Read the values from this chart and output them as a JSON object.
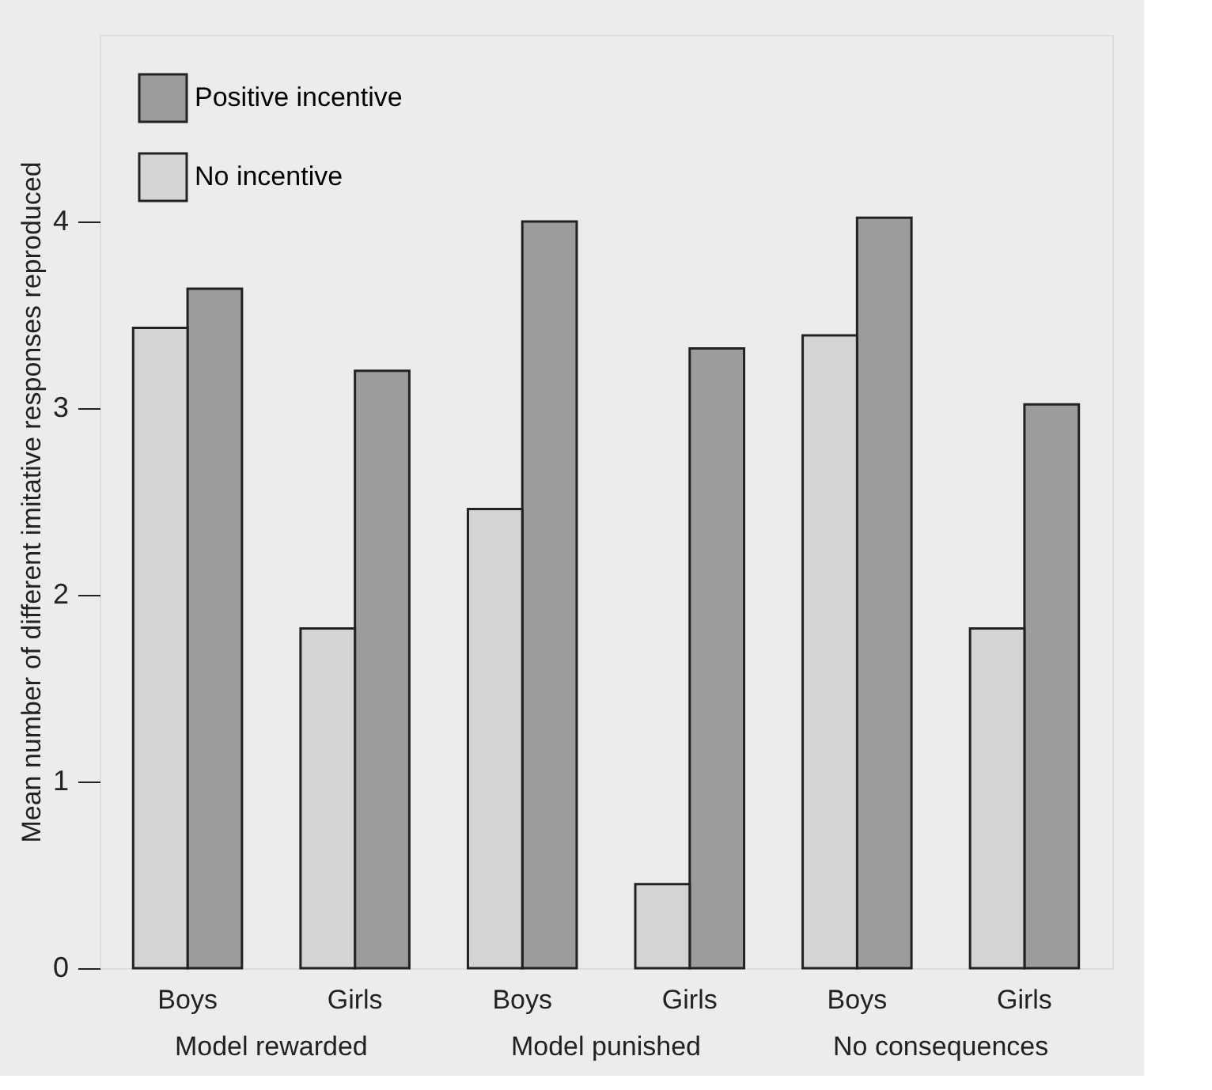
{
  "chart_data": {
    "type": "bar",
    "ylabel": "Mean number of different imitative responses reproduced",
    "categories": [
      "Boys",
      "Girls",
      "Boys",
      "Girls",
      "Boys",
      "Girls"
    ],
    "series": [
      {
        "name": "Positive incentive",
        "color": "#9c9c9c",
        "values": [
          3.64,
          3.2,
          4.0,
          3.32,
          4.02,
          3.02
        ]
      },
      {
        "name": "No incentive",
        "color": "#d4d4d4",
        "values": [
          3.43,
          1.82,
          2.46,
          0.45,
          3.39,
          1.82
        ]
      }
    ],
    "annotations": [
      "Model rewarded",
      "Model punished",
      "No consequences"
    ],
    "ylim": [
      0,
      5
    ],
    "yticks": [
      0,
      1,
      2,
      3,
      4
    ],
    "grid": false,
    "legend": "top left"
  }
}
